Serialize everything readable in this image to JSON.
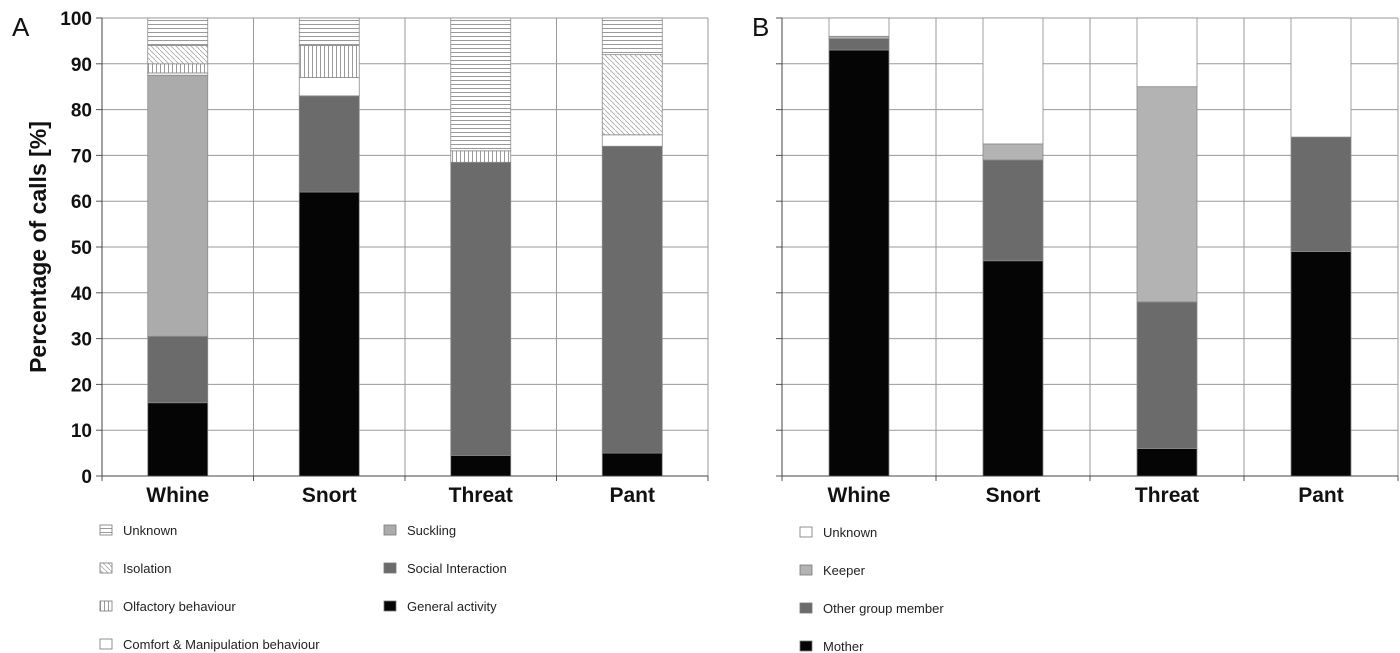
{
  "patterns": {
    "Unknown": {
      "kind": "hlines",
      "fill": "#ffffff",
      "stroke": "#9a9a9a",
      "spacing": 4
    },
    "Isolation": {
      "kind": "diag",
      "fill": "#ffffff",
      "stroke": "#a8a8a8",
      "spacing": 5
    },
    "Olfactory behaviour": {
      "kind": "vlines",
      "fill": "#ffffff",
      "stroke": "#9a9a9a",
      "spacing": 4
    },
    "Comfort & Manipulation behaviour": {
      "kind": "solid",
      "fill": "#ffffff"
    },
    "Suckling": {
      "kind": "solid",
      "fill": "#ababab"
    },
    "Social Interaction": {
      "kind": "solid",
      "fill": "#6b6b6b"
    },
    "General activity": {
      "kind": "solid",
      "fill": "#050505"
    },
    "B-Unknown": {
      "kind": "solid",
      "fill": "#ffffff"
    },
    "Keeper": {
      "kind": "solid",
      "fill": "#b3b3b3"
    },
    "Other group member": {
      "kind": "solid",
      "fill": "#6b6b6b"
    },
    "Mother": {
      "kind": "solid",
      "fill": "#050505"
    }
  },
  "chart_data": [
    {
      "panel_label": "A",
      "type": "bar",
      "stacked": true,
      "ylabel": "Percentage of calls [%]",
      "ylim": [
        0,
        100
      ],
      "yticks": [
        0,
        10,
        20,
        30,
        40,
        50,
        60,
        70,
        80,
        90,
        100
      ],
      "grid": true,
      "categories": [
        "Whine",
        "Snort",
        "Threat",
        "Pant"
      ],
      "series": [
        {
          "name": "General activity",
          "style": "General activity",
          "values": [
            16,
            62,
            4.5,
            5
          ]
        },
        {
          "name": "Social Interaction",
          "style": "Social Interaction",
          "values": [
            14.5,
            21,
            64,
            67
          ]
        },
        {
          "name": "Suckling",
          "style": "Suckling",
          "values": [
            57,
            0,
            0,
            0
          ]
        },
        {
          "name": "Comfort & Manipulation behaviour",
          "style": "Comfort & Manipulation behaviour",
          "values": [
            0.5,
            4,
            0,
            2.5
          ]
        },
        {
          "name": "Olfactory behaviour",
          "style": "Olfactory behaviour",
          "values": [
            2,
            7,
            2.5,
            0
          ]
        },
        {
          "name": "Isolation",
          "style": "Isolation",
          "values": [
            4,
            0,
            0,
            17.5
          ]
        },
        {
          "name": "Unknown",
          "style": "Unknown",
          "values": [
            6,
            6,
            29,
            8
          ]
        }
      ],
      "legend": {
        "columns": [
          [
            "Unknown",
            "Isolation",
            "Olfactory behaviour",
            "Comfort & Manipulation behaviour"
          ],
          [
            "Suckling",
            "Social Interaction",
            "General activity"
          ]
        ]
      }
    },
    {
      "panel_label": "B",
      "type": "bar",
      "stacked": true,
      "ylabel": "",
      "ylim": [
        0,
        100
      ],
      "grid": true,
      "categories": [
        "Whine",
        "Snort",
        "Threat",
        "Pant"
      ],
      "series": [
        {
          "name": "Mother",
          "style": "Mother",
          "values": [
            93,
            47,
            6,
            49
          ]
        },
        {
          "name": "Other group member",
          "style": "Other group member",
          "values": [
            2.5,
            22,
            32,
            25
          ]
        },
        {
          "name": "Keeper",
          "style": "Keeper",
          "values": [
            0.5,
            3.5,
            47,
            0
          ]
        },
        {
          "name": "Unknown",
          "style": "B-Unknown",
          "values": [
            4,
            27.5,
            15,
            26
          ]
        }
      ],
      "legend": {
        "columns": [
          [
            "Unknown",
            "Keeper",
            "Other group member",
            "Mother"
          ]
        ]
      }
    }
  ]
}
